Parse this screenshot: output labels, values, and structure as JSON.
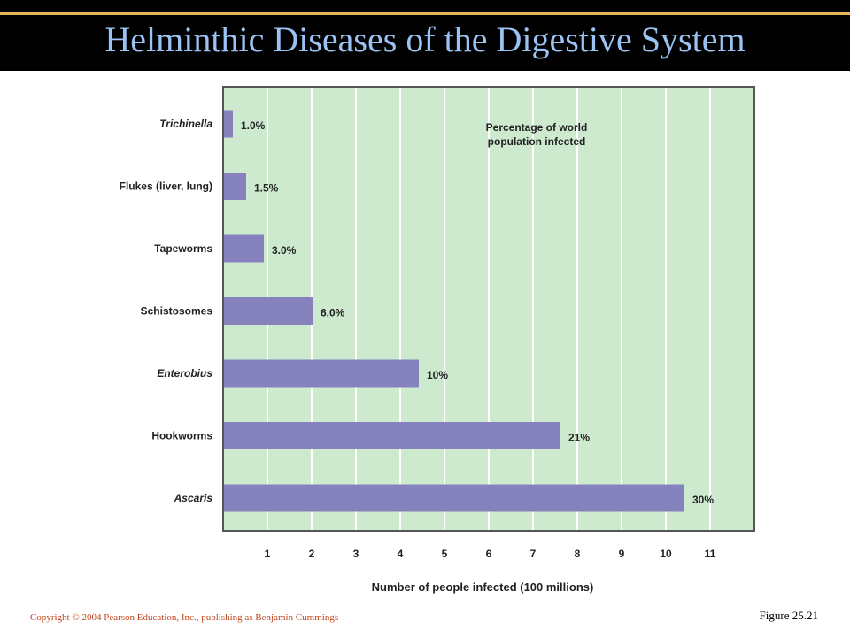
{
  "slide": {
    "title": "Helminthic Diseases of the Digestive System",
    "copyright": "Copyright © 2004 Pearson Education, Inc., publishing as Benjamin Cummings",
    "figure": "Figure 25.21"
  },
  "colors": {
    "title_bar": "#000000",
    "title_rule": "#e8b25c",
    "title_text": "#9ac2f2",
    "plot_background": "#cdeacf",
    "bar": "#8582bd",
    "copyright_text": "#c2471f"
  },
  "chart_data": {
    "type": "bar",
    "orientation": "horizontal",
    "categories": [
      "Trichinella",
      "Flukes (liver, lung)",
      "Tapeworms",
      "Schistosomes",
      "Enterobius",
      "Hookworms",
      "Ascaris"
    ],
    "italic_categories": [
      "Trichinella",
      "Enterobius",
      "Ascaris"
    ],
    "values": [
      0.2,
      0.5,
      0.9,
      2.0,
      4.4,
      7.6,
      10.4
    ],
    "data_labels": [
      "1.0%",
      "1.5%",
      "3.0%",
      "6.0%",
      "10%",
      "21%",
      "30%"
    ],
    "xlabel": "Number of people infected (100 millions)",
    "xticks": [
      1,
      2,
      3,
      4,
      5,
      6,
      7,
      8,
      9,
      10,
      11
    ],
    "xlim": [
      0,
      11.6
    ],
    "grid": true,
    "annotation": "Percentage of world population infected",
    "legend": "none"
  }
}
